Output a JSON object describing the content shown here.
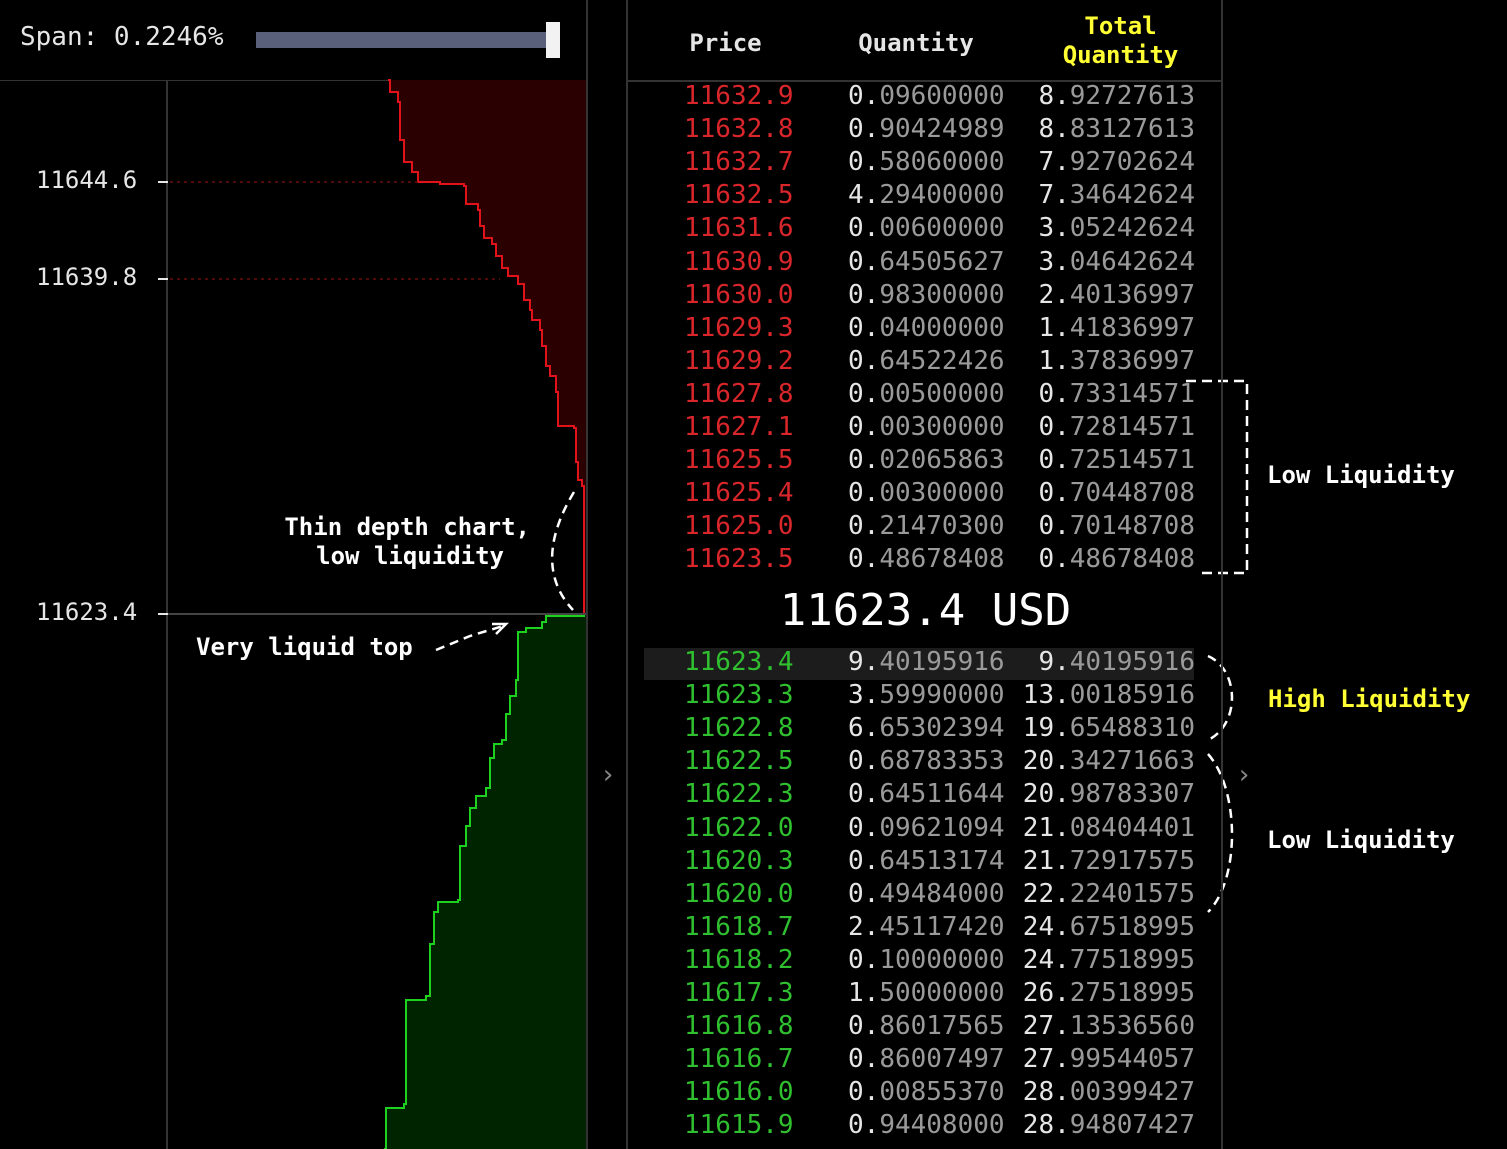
{
  "span": {
    "label": "Span: 0.2246%",
    "value": 0.97
  },
  "depth_chart": {
    "yticks": [
      "11644.6",
      "11639.8",
      "11623.4"
    ],
    "annotations": {
      "thin": [
        "Thin depth chart,",
        "low liquidity"
      ],
      "liquid_top": "Very liquid top"
    },
    "colors": {
      "ask_line": "#e0131a",
      "ask_fill": "#2a0000",
      "bid_line": "#1fd11f",
      "bid_fill": "#002400"
    }
  },
  "table": {
    "headers": {
      "price": "Price",
      "quantity": "Quantity",
      "total_line1": "Total",
      "total_line2": "Quantity"
    },
    "asks": [
      {
        "price": "11632.9",
        "qty_lead": "0.",
        "qty_rest": "09600000",
        "total_lead": "8.",
        "total_rest": "92727613"
      },
      {
        "price": "11632.8",
        "qty_lead": "0.",
        "qty_rest": "90424989",
        "total_lead": "8.",
        "total_rest": "83127613"
      },
      {
        "price": "11632.7",
        "qty_lead": "0.",
        "qty_rest": "58060000",
        "total_lead": "7.",
        "total_rest": "92702624"
      },
      {
        "price": "11632.5",
        "qty_lead": "4.",
        "qty_rest": "29400000",
        "total_lead": "7.",
        "total_rest": "34642624"
      },
      {
        "price": "11631.6",
        "qty_lead": "0.",
        "qty_rest": "00600000",
        "total_lead": "3.",
        "total_rest": "05242624"
      },
      {
        "price": "11630.9",
        "qty_lead": "0.",
        "qty_rest": "64505627",
        "total_lead": "3.",
        "total_rest": "04642624"
      },
      {
        "price": "11630.0",
        "qty_lead": "0.",
        "qty_rest": "98300000",
        "total_lead": "2.",
        "total_rest": "40136997"
      },
      {
        "price": "11629.3",
        "qty_lead": "0.",
        "qty_rest": "04000000",
        "total_lead": "1.",
        "total_rest": "41836997"
      },
      {
        "price": "11629.2",
        "qty_lead": "0.",
        "qty_rest": "64522426",
        "total_lead": "1.",
        "total_rest": "37836997"
      },
      {
        "price": "11627.8",
        "qty_lead": "0.",
        "qty_rest": "00500000",
        "total_lead": "0.",
        "total_rest": "73314571"
      },
      {
        "price": "11627.1",
        "qty_lead": "0.",
        "qty_rest": "00300000",
        "total_lead": "0.",
        "total_rest": "72814571"
      },
      {
        "price": "11625.5",
        "qty_lead": "0.",
        "qty_rest": "02065863",
        "total_lead": "0.",
        "total_rest": "72514571"
      },
      {
        "price": "11625.4",
        "qty_lead": "0.",
        "qty_rest": "00300000",
        "total_lead": "0.",
        "total_rest": "70448708"
      },
      {
        "price": "11625.0",
        "qty_lead": "0.",
        "qty_rest": "21470300",
        "total_lead": "0.",
        "total_rest": "70148708"
      },
      {
        "price": "11623.5",
        "qty_lead": "0.",
        "qty_rest": "48678408",
        "total_lead": "0.",
        "total_rest": "48678408"
      }
    ],
    "mid_price": "11623.4 USD",
    "bids": [
      {
        "price": "11623.4",
        "qty_lead": "9.",
        "qty_rest": "40195916",
        "total_lead": "9.",
        "total_rest": "40195916"
      },
      {
        "price": "11623.3",
        "qty_lead": "3.",
        "qty_rest": "59990000",
        "total_lead": "13.",
        "total_rest": "00185916"
      },
      {
        "price": "11622.8",
        "qty_lead": "6.",
        "qty_rest": "65302394",
        "total_lead": "19.",
        "total_rest": "65488310"
      },
      {
        "price": "11622.5",
        "qty_lead": "0.",
        "qty_rest": "68783353",
        "total_lead": "20.",
        "total_rest": "34271663"
      },
      {
        "price": "11622.3",
        "qty_lead": "0.",
        "qty_rest": "64511644",
        "total_lead": "20.",
        "total_rest": "98783307"
      },
      {
        "price": "11622.0",
        "qty_lead": "0.",
        "qty_rest": "09621094",
        "total_lead": "21.",
        "total_rest": "08404401"
      },
      {
        "price": "11620.3",
        "qty_lead": "0.",
        "qty_rest": "64513174",
        "total_lead": "21.",
        "total_rest": "72917575"
      },
      {
        "price": "11620.0",
        "qty_lead": "0.",
        "qty_rest": "49484000",
        "total_lead": "22.",
        "total_rest": "22401575"
      },
      {
        "price": "11618.7",
        "qty_lead": "2.",
        "qty_rest": "45117420",
        "total_lead": "24.",
        "total_rest": "67518995"
      },
      {
        "price": "11618.2",
        "qty_lead": "0.",
        "qty_rest": "10000000",
        "total_lead": "24.",
        "total_rest": "77518995"
      },
      {
        "price": "11617.3",
        "qty_lead": "1.",
        "qty_rest": "50000000",
        "total_lead": "26.",
        "total_rest": "27518995"
      },
      {
        "price": "11616.8",
        "qty_lead": "0.",
        "qty_rest": "86017565",
        "total_lead": "27.",
        "total_rest": "13536560"
      },
      {
        "price": "11616.7",
        "qty_lead": "0.",
        "qty_rest": "86007497",
        "total_lead": "27.",
        "total_rest": "99544057"
      },
      {
        "price": "11616.0",
        "qty_lead": "0.",
        "qty_rest": "00855370",
        "total_lead": "28.",
        "total_rest": "00399427"
      },
      {
        "price": "11615.9",
        "qty_lead": "0.",
        "qty_rest": "94408000",
        "total_lead": "28.",
        "total_rest": "94807427"
      }
    ]
  },
  "side_annotations": {
    "ask_low": "Low Liquidity",
    "bid_high": "High Liquidity",
    "bid_low": "Low Liquidity",
    "colors": {
      "high": "#ffff33",
      "low": "#ffffff",
      "header_total": "#ffff33"
    }
  },
  "icons": {
    "expand_left": "chevron-right-icon",
    "expand_right": "chevron-right-icon"
  }
}
